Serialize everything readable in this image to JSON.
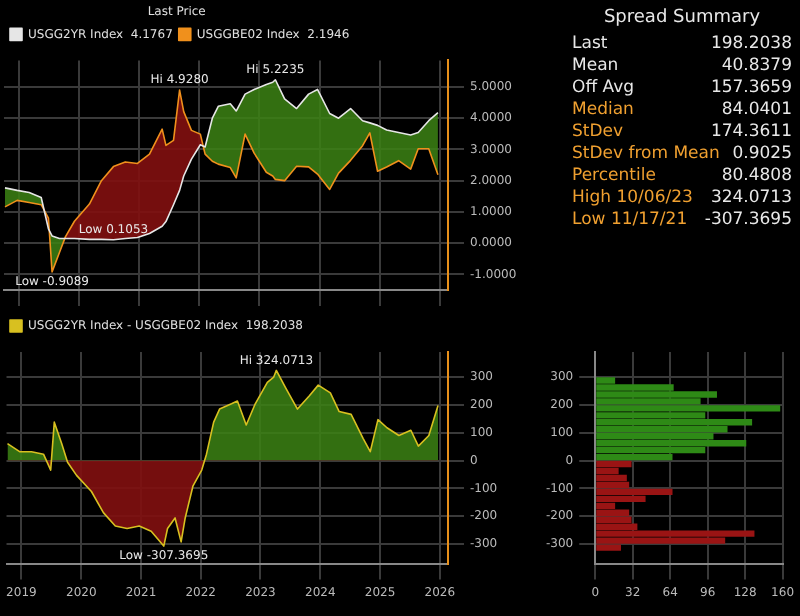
{
  "chart_data": [
    {
      "type": "line",
      "legend_title": "Last Price",
      "legend": "top left",
      "grid": true,
      "tick_labels": "y",
      "x": [
        "2019-04-07",
        "2019-06-20",
        "2019-09-01",
        "2019-11-13",
        "2019-12-27",
        "2020-01-18",
        "2020-03-03",
        "2020-04-08",
        "2020-06-02",
        "2020-09-01",
        "2020-11-13",
        "2021-01-25",
        "2021-04-07",
        "2021-06-20",
        "2021-09-01",
        "2021-11-17",
        "2021-12-10",
        "2022-01-25",
        "2022-03-03",
        "2022-03-28",
        "2022-05-14",
        "2022-07-07",
        "2022-08-05",
        "2022-09-18",
        "2022-10-24",
        "2023-01-05",
        "2023-02-10",
        "2023-04-05",
        "2023-05-30",
        "2023-08-12",
        "2023-09-20",
        "2023-10-06",
        "2023-12-01",
        "2024-02-12",
        "2024-04-25",
        "2024-06-18",
        "2024-08-31",
        "2024-10-24",
        "2025-01-05",
        "2025-03-19",
        "2025-05-02",
        "2025-06-18",
        "2025-08-12",
        "2025-10-24",
        "2026-01-05",
        "2026-02-20",
        "2026-04-25",
        "2026-06-20"
      ],
      "series": [
        {
          "name": "USGG2YR Index  4.1767",
          "color": "#e6e6e6",
          "values": [
            1.77,
            1.69,
            1.62,
            1.46,
            0.46,
            0.23,
            0.15,
            0.15,
            0.15,
            0.12,
            0.12,
            0.11,
            0.15,
            0.18,
            0.31,
            0.54,
            0.69,
            1.23,
            1.69,
            2.15,
            2.69,
            3.15,
            3.08,
            4.0,
            4.38,
            4.46,
            4.23,
            4.77,
            4.92,
            5.08,
            5.15,
            5.23,
            4.62,
            4.31,
            4.77,
            4.92,
            4.15,
            4.0,
            4.31,
            3.92,
            3.85,
            3.77,
            3.62,
            3.54,
            3.46,
            3.54,
            3.92,
            4.18
          ],
          "upper": [
            1.77,
            1.69,
            1.62,
            1.46,
            0.46,
            0.23,
            0.15,
            0.15,
            0.15,
            0.12,
            0.12,
            0.11,
            0.15,
            0.18,
            0.31,
            0.54,
            0.69,
            1.23,
            1.69,
            2.15,
            2.69,
            3.15,
            3.08,
            4.0,
            4.38,
            4.46,
            4.23,
            4.77,
            4.92,
            5.08,
            5.15,
            5.23,
            4.62,
            4.31,
            4.77,
            4.92,
            4.15,
            4.0,
            4.31,
            3.92,
            3.85,
            3.77,
            3.62,
            3.54,
            3.46,
            3.54,
            3.92,
            4.18
          ],
          "lower": [
            1.16,
            1.37,
            1.3,
            1.23,
            0.8,
            -0.92,
            -0.3,
            0.2,
            0.7,
            1.25,
            2.0,
            2.45,
            2.6,
            2.55,
            2.85,
            3.65,
            3.13,
            3.29,
            4.9,
            4.21,
            3.61,
            3.49,
            2.85,
            2.62,
            2.53,
            2.42,
            2.09,
            3.49,
            2.88,
            2.27,
            2.15,
            2.04,
            2.0,
            2.46,
            2.44,
            2.21,
            1.72,
            2.24,
            2.65,
            3.12,
            3.53,
            2.3,
            2.44,
            2.64,
            2.37,
            3.02,
            3.02,
            2.19
          ]
        },
        {
          "name": "USGGBE02 Index  2.1946",
          "color": "#f0901c",
          "values": [
            1.16,
            1.37,
            1.3,
            1.23,
            0.8,
            -0.92,
            -0.3,
            0.2,
            0.7,
            1.25,
            2.0,
            2.45,
            2.6,
            2.55,
            2.85,
            3.65,
            3.13,
            3.29,
            4.9,
            4.21,
            3.61,
            3.49,
            2.85,
            2.62,
            2.53,
            2.42,
            2.09,
            3.49,
            2.88,
            2.27,
            2.15,
            2.04,
            2.0,
            2.46,
            2.44,
            2.21,
            1.72,
            2.24,
            2.65,
            3.12,
            3.53,
            2.3,
            2.44,
            2.64,
            2.37,
            3.02,
            3.02,
            2.19
          ]
        }
      ],
      "xlim": [
        "2019-04-01",
        "2026-08-20"
      ],
      "xticks": [
        {
          "value": "2019-07-01",
          "label": null
        },
        {
          "value": "2020-07-01",
          "label": null
        },
        {
          "value": "2021-07-01",
          "label": null
        },
        {
          "value": "2022-07-01",
          "label": null
        },
        {
          "value": "2023-07-01",
          "label": null
        },
        {
          "value": "2024-07-01",
          "label": null
        },
        {
          "value": "2025-07-01",
          "label": null
        },
        {
          "value": "2026-07-01",
          "label": null
        }
      ],
      "ylim": [
        -1.5,
        5.85
      ],
      "yticks": [
        {
          "value": 5,
          "label": "5.0000"
        },
        {
          "value": 4,
          "label": "4.0000"
        },
        {
          "value": 3,
          "label": "3.0000"
        },
        {
          "value": 2,
          "label": "2.0000"
        },
        {
          "value": 1,
          "label": "1.0000"
        },
        {
          "value": 0,
          "label": "0.0000"
        },
        {
          "value": -1,
          "label": "-1.0000"
        }
      ],
      "annotations": [
        {
          "text": "Hi 5.2235",
          "x": "2023-10-06",
          "y": 5.23
        },
        {
          "text": "Low 0.1053",
          "x": "2021-01-25",
          "y": 0.11
        },
        {
          "text": "Hi 4.9280",
          "x": "2022-03-03",
          "y": 4.9
        },
        {
          "text": "Low -0.9089",
          "x": "2020-01-18",
          "y": -0.92
        }
      ]
    },
    {
      "type": "area",
      "legend": "top left",
      "grid": true,
      "x": [
        "2019-04-07",
        "2019-06-20",
        "2019-09-01",
        "2019-11-13",
        "2019-12-27",
        "2020-01-18",
        "2020-03-03",
        "2020-04-08",
        "2020-06-02",
        "2020-09-01",
        "2020-11-13",
        "2021-01-25",
        "2021-04-07",
        "2021-06-20",
        "2021-09-01",
        "2021-11-17",
        "2021-12-10",
        "2022-01-25",
        "2022-03-03",
        "2022-03-28",
        "2022-05-14",
        "2022-07-07",
        "2022-08-05",
        "2022-09-18",
        "2022-10-24",
        "2023-01-05",
        "2023-02-10",
        "2023-04-05",
        "2023-05-30",
        "2023-08-12",
        "2023-09-20",
        "2023-10-06",
        "2023-12-01",
        "2024-02-12",
        "2024-04-25",
        "2024-06-18",
        "2024-08-31",
        "2024-10-24",
        "2025-01-05",
        "2025-03-19",
        "2025-05-02",
        "2025-06-18",
        "2025-08-12",
        "2025-10-24",
        "2026-01-05",
        "2026-02-20",
        "2026-04-25",
        "2026-06-20"
      ],
      "series": [
        {
          "name": "USGG2YR Index - USGGBE02 Index  198.2038",
          "color": "#d8c020",
          "values": [
            61,
            32,
            32,
            23,
            -34,
            138,
            61,
            -6,
            -53,
            -111,
            -187,
            -235,
            -244,
            -235,
            -254,
            -307,
            -244,
            -206,
            -292,
            -206,
            -92,
            -34,
            23,
            138,
            185,
            204,
            214,
            128,
            204,
            281,
            300,
            324,
            262,
            185,
            233,
            271,
            243,
            176,
            166,
            80,
            32,
            147,
            118,
            90,
            109,
            52,
            90,
            198
          ]
        }
      ],
      "xlim": [
        "2019-04-01",
        "2026-08-20"
      ],
      "xticks": [
        {
          "value": "2019-07-01",
          "label": "2019"
        },
        {
          "value": "2020-07-01",
          "label": "2020"
        },
        {
          "value": "2021-07-01",
          "label": "2021"
        },
        {
          "value": "2022-07-01",
          "label": "2022"
        },
        {
          "value": "2023-07-01",
          "label": "2023"
        },
        {
          "value": "2024-07-01",
          "label": "2024"
        },
        {
          "value": "2025-07-01",
          "label": "2025"
        },
        {
          "value": "2026-07-01",
          "label": "2026"
        }
      ],
      "ylim": [
        -370,
        390
      ],
      "yticks": [
        -300,
        -200,
        -100,
        0,
        100,
        200,
        300
      ],
      "annotations": [
        {
          "text": "Hi 324.0713",
          "x": "2023-10-06",
          "y": 324
        },
        {
          "text": "Low -307.3695",
          "x": "2021-11-17",
          "y": -307
        }
      ]
    },
    {
      "type": "histogram",
      "orientation": "horizontal",
      "grid": true,
      "bins": [
        -325,
        -300,
        -275,
        -250,
        -225,
        -200,
        -175,
        -150,
        -125,
        -100,
        -75,
        -50,
        -25,
        0,
        25,
        50,
        75,
        100,
        125,
        150,
        175,
        200,
        225,
        250,
        275,
        300
      ],
      "values": [
        22,
        111,
        136,
        36,
        31,
        29,
        17,
        43,
        66,
        29,
        27,
        20,
        31,
        66,
        94,
        129,
        101,
        113,
        134,
        94,
        158,
        90,
        104,
        67,
        17
      ],
      "colors": [
        "#9a1414",
        "#9a1414",
        "#9a1414",
        "#9a1414",
        "#9a1414",
        "#9a1414",
        "#9a1414",
        "#9a1414",
        "#9a1414",
        "#9a1414",
        "#9a1414",
        "#9a1414",
        "#9a1414",
        "#2e8a16",
        "#2e8a16",
        "#2e8a16",
        "#2e8a16",
        "#2e8a16",
        "#2e8a16",
        "#2e8a16",
        "#2e8a16",
        "#2e8a16",
        "#2e8a16",
        "#2e8a16",
        "#2e8a16"
      ],
      "ylim": [
        -370,
        390
      ],
      "yticks": [
        -300,
        -200,
        -100,
        0,
        100,
        200,
        300
      ],
      "xlim": [
        0,
        160
      ],
      "xticks": [
        0,
        32,
        64,
        96,
        128,
        160
      ]
    },
    {
      "type": "other",
      "title": "Spread Summary",
      "categories": [
        "Last",
        "Mean",
        "Off Avg",
        "Median",
        "StDev",
        "StDev from Mean",
        "Percentile",
        "High 10/06/23",
        "Low 11/17/21"
      ],
      "values": [
        198.2038,
        40.8379,
        157.3659,
        84.0401,
        174.3611,
        0.9025,
        80.4808,
        324.0713,
        -307.3695
      ],
      "colors": [
        "#e8e8e8",
        "#e8e8e8",
        "#e8e8e8",
        "#f0a030",
        "#f0a030",
        "#f0a030",
        "#f0a030",
        "#f0a030",
        "#f0a030"
      ],
      "data_labels": true
    }
  ]
}
